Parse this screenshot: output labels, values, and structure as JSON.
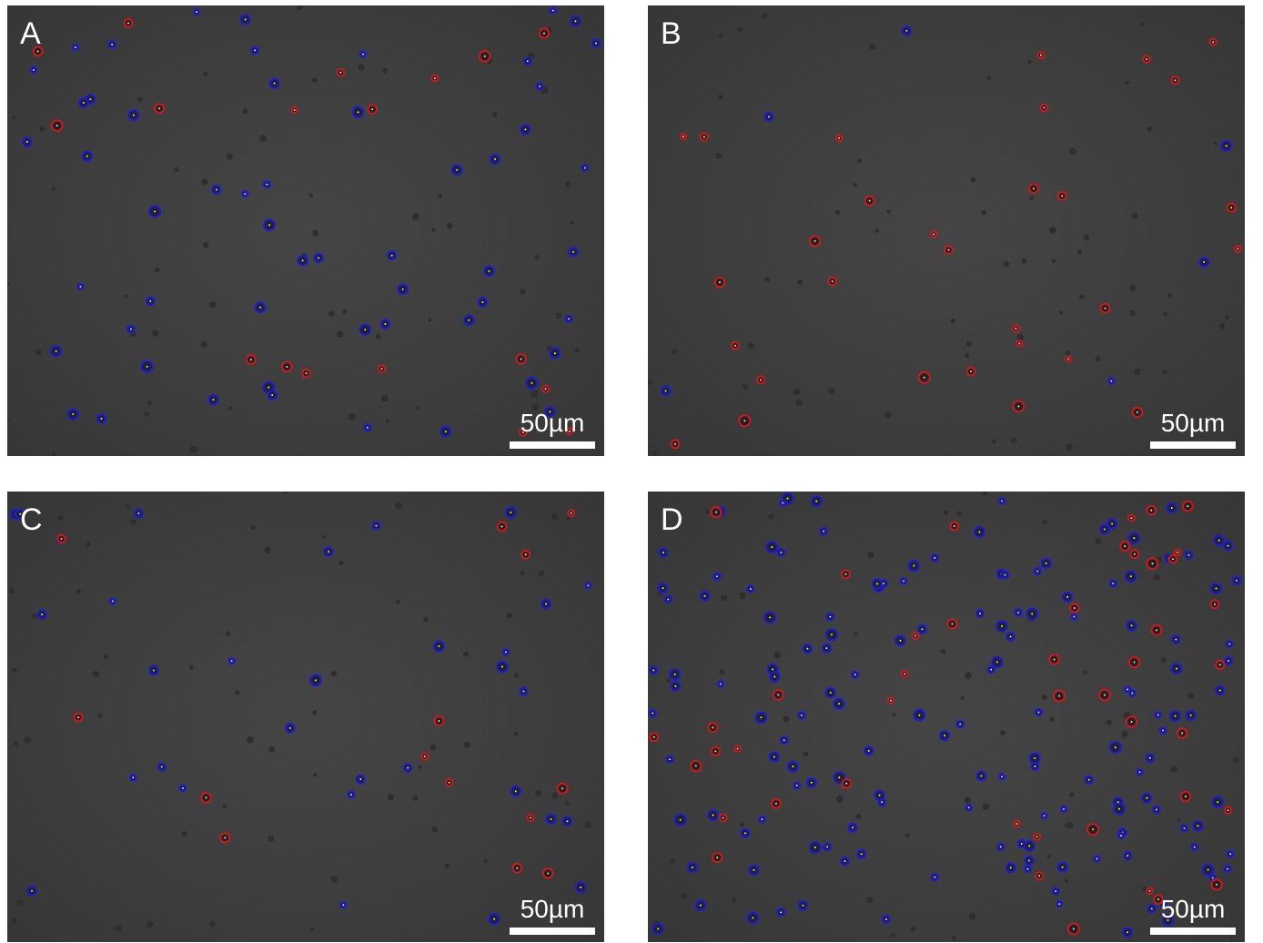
{
  "figure": {
    "panels": [
      {
        "label": "A",
        "scale_bar": "50µm"
      },
      {
        "label": "B",
        "scale_bar": "50µm"
      },
      {
        "label": "C",
        "scale_bar": "50µm"
      },
      {
        "label": "D",
        "scale_bar": "50µm"
      }
    ],
    "colors": {
      "background": "#3c3c3c",
      "blue_marker": "#1a1adc",
      "red_marker": "#d01818",
      "text": "#ffffff"
    }
  }
}
